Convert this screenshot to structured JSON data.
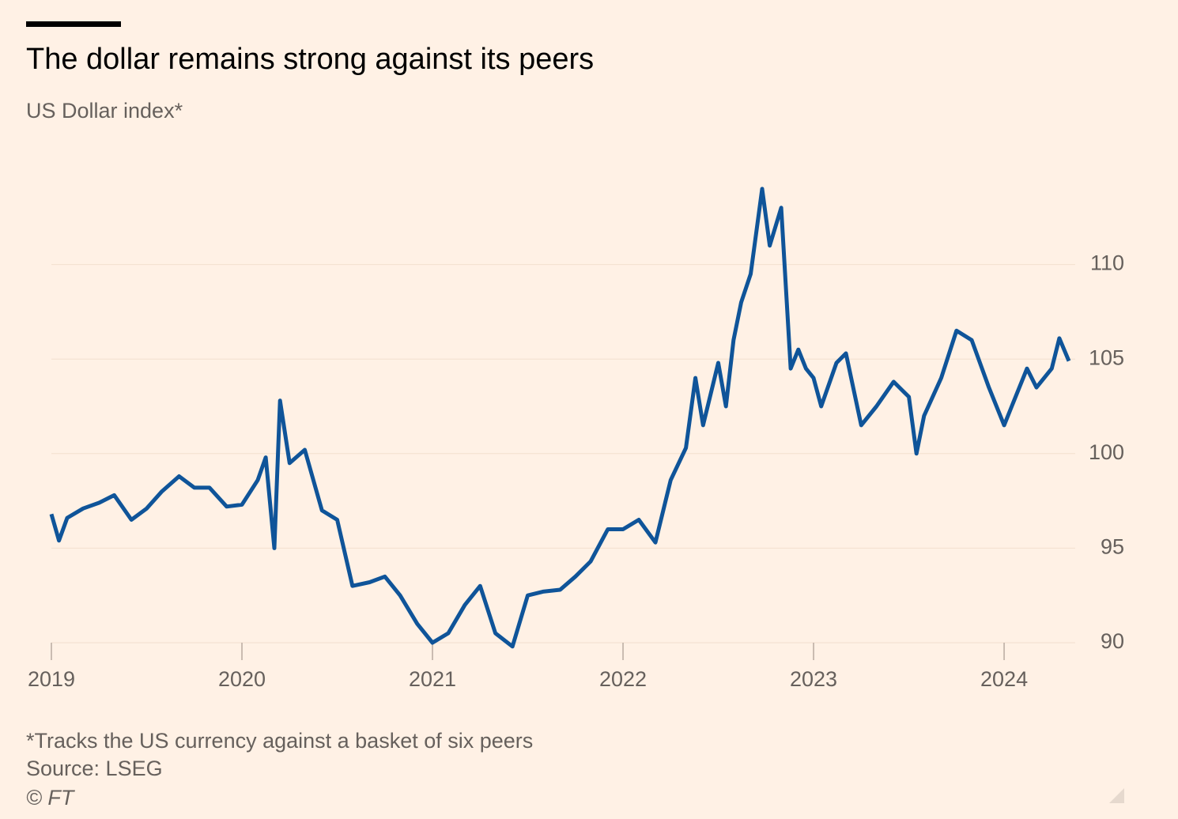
{
  "chart_data": {
    "type": "line",
    "title": "The dollar remains strong against its peers",
    "subtitle": "US Dollar index*",
    "notes": [
      "*Tracks the US currency against a basket of six peers",
      "Source: LSEG",
      "© FT"
    ],
    "x": [
      2019.0,
      2019.04,
      2019.083,
      2019.167,
      2019.25,
      2019.33,
      2019.42,
      2019.5,
      2019.58,
      2019.67,
      2019.75,
      2019.83,
      2019.92,
      2020.0,
      2020.083,
      2020.125,
      2020.17,
      2020.2,
      2020.25,
      2020.33,
      2020.42,
      2020.5,
      2020.58,
      2020.67,
      2020.75,
      2020.83,
      2020.92,
      2021.0,
      2021.083,
      2021.17,
      2021.25,
      2021.33,
      2021.42,
      2021.5,
      2021.58,
      2021.67,
      2021.75,
      2021.83,
      2021.92,
      2022.0,
      2022.083,
      2022.17,
      2022.25,
      2022.33,
      2022.38,
      2022.42,
      2022.5,
      2022.54,
      2022.58,
      2022.62,
      2022.67,
      2022.73,
      2022.77,
      2022.83,
      2022.88,
      2022.92,
      2022.96,
      2023.0,
      2023.04,
      2023.12,
      2023.17,
      2023.25,
      2023.33,
      2023.42,
      2023.5,
      2023.54,
      2023.58,
      2023.67,
      2023.75,
      2023.83,
      2023.92,
      2024.0,
      2024.04,
      2024.12,
      2024.17,
      2024.25,
      2024.29,
      2024.34
    ],
    "series": [
      {
        "name": "US Dollar index",
        "color": "#0f5499",
        "values": [
          96.8,
          95.4,
          96.6,
          97.1,
          97.4,
          97.8,
          96.5,
          97.1,
          98,
          98.8,
          98.2,
          98.2,
          97.2,
          97.3,
          98.6,
          99.8,
          95,
          102.8,
          99.5,
          100.2,
          97,
          96.5,
          93,
          93.2,
          93.5,
          92.5,
          91,
          90,
          90.5,
          92,
          93,
          90.5,
          89.8,
          92.5,
          92.7,
          92.8,
          93.5,
          94.3,
          96,
          96,
          96.5,
          95.3,
          98.6,
          100.3,
          104,
          101.5,
          104.8,
          102.5,
          106,
          108,
          109.5,
          114,
          111,
          113,
          104.5,
          105.5,
          104.5,
          104,
          102.5,
          104.8,
          105.3,
          101.5,
          102.5,
          103.8,
          103,
          100,
          102,
          104,
          106.5,
          106,
          103.5,
          101.5,
          102.5,
          104.5,
          103.5,
          104.5,
          106.1,
          104.9
        ]
      }
    ],
    "xlim": [
      2019,
      2024.34
    ],
    "xticks": [
      2019,
      2020,
      2021,
      2022,
      2023,
      2024
    ],
    "ylim": [
      90,
      115
    ],
    "yticks": [
      90,
      95,
      100,
      105,
      110
    ],
    "grid": true
  }
}
